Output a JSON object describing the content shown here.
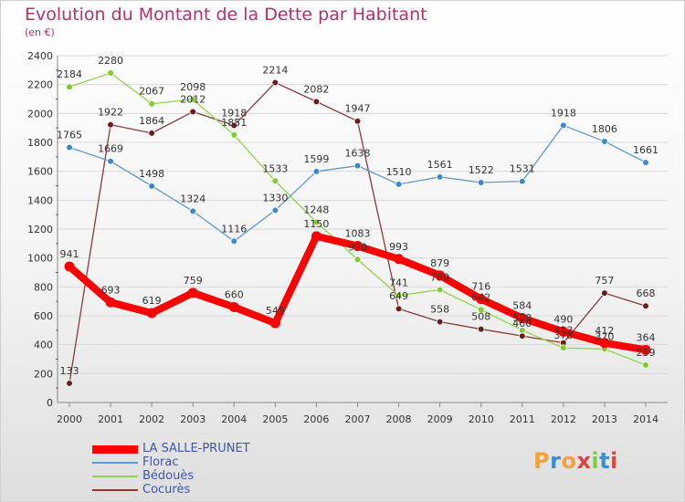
{
  "header": {
    "title": "Evolution du Montant de la Dette par Habitant",
    "unit": "(en €)"
  },
  "logo": {
    "text": "Proxiti"
  },
  "chart_data": {
    "type": "line",
    "title": "Evolution du Montant de la Dette par Habitant",
    "subtitle": "(en €)",
    "xlabel": "",
    "ylabel": "",
    "ylim": [
      0,
      2400
    ],
    "yticks": [
      0,
      200,
      400,
      600,
      800,
      1000,
      1200,
      1400,
      1600,
      1800,
      2000,
      2200,
      2400
    ],
    "categories": [
      "2000",
      "2001",
      "2002",
      "2003",
      "2004",
      "2005",
      "2006",
      "2007",
      "2008",
      "2009",
      "2010",
      "2011",
      "2012",
      "2013",
      "2014"
    ],
    "grid": "horizontal",
    "legend_position": "bottom-left",
    "series": [
      {
        "name": "Cocurès",
        "color": "#6e1a1a",
        "line": "#8b3a3a",
        "values": [
          133,
          1922,
          1864,
          2012,
          1918,
          2214,
          2082,
          1947,
          649,
          558,
          508,
          460,
          413,
          757,
          668
        ]
      },
      {
        "name": "Bédouès",
        "color": "#7ecb2a",
        "line": "#8fd44a",
        "values": [
          2184,
          2280,
          2067,
          2098,
          1851,
          1533,
          1248,
          990,
          741,
          780,
          642,
          500,
          378,
          370,
          259
        ]
      },
      {
        "name": "Florac",
        "color": "#3b88d0",
        "line": "#5a9bd5",
        "values": [
          1765,
          1669,
          1498,
          1324,
          1116,
          1330,
          1599,
          1638,
          1510,
          1561,
          1522,
          1531,
          1918,
          1806,
          1661
        ]
      },
      {
        "name": "LA SALLE-PRUNET",
        "color": "#ff0000",
        "line": "#ff0000",
        "values": [
          941,
          693,
          619,
          759,
          660,
          549,
          1150,
          1083,
          993,
          879,
          716,
          584,
          490,
          412,
          364
        ]
      }
    ]
  }
}
